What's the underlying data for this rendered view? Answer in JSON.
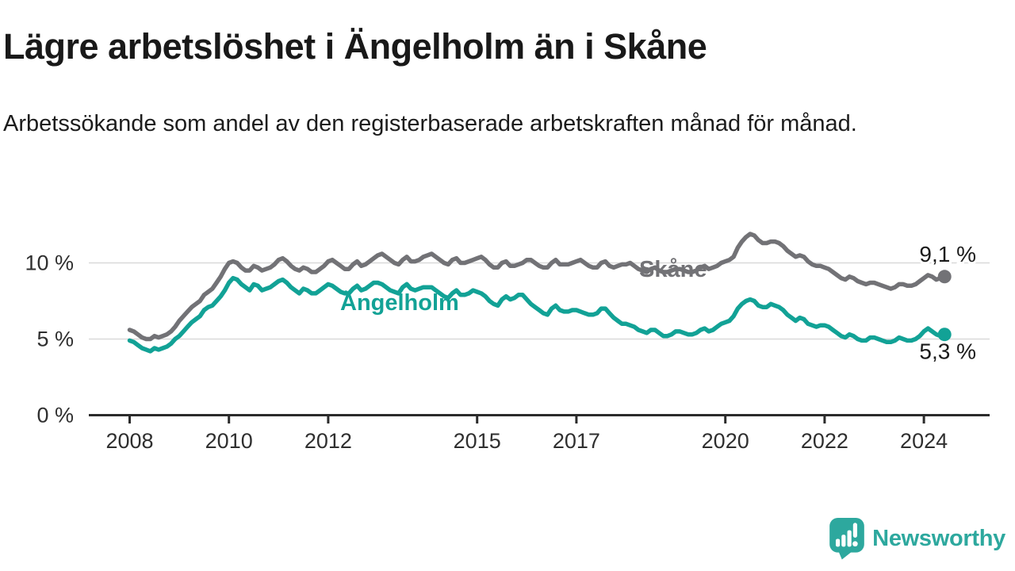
{
  "title": "Lägre arbetslöshet i Ängelholm än i Skåne",
  "subtitle": "Arbetssökande som andel av den registerbaserade arbetskraften månad för månad.",
  "branding": {
    "name": "Newsworthy",
    "icon": "newsworthy-chart-bubble-icon",
    "color": "#2da89e"
  },
  "colors": {
    "background": "#ffffff",
    "grid": "#d9d9d9",
    "axis": "#2b2b2b",
    "tick_label": "#2f2f2f",
    "value_label": "#1a1a1a",
    "skane": "#727276",
    "angelholm": "#12a296"
  },
  "chart_data": {
    "type": "line",
    "unit": "%",
    "frequency": "monthly",
    "start_year": 2008,
    "end_label_note": "last point mid-2024",
    "x_ticks": [
      {
        "year": 2008,
        "label": "2008"
      },
      {
        "year": 2010,
        "label": "2010"
      },
      {
        "year": 2012,
        "label": "2012"
      },
      {
        "year": 2015,
        "label": "2015"
      },
      {
        "year": 2017,
        "label": "2017"
      },
      {
        "year": 2020,
        "label": "2020"
      },
      {
        "year": 2022,
        "label": "2022"
      },
      {
        "year": 2024,
        "label": "2024"
      }
    ],
    "y_ticks": [
      {
        "value": 0,
        "label": "0 %"
      },
      {
        "value": 5,
        "label": "5 %"
      },
      {
        "value": 10,
        "label": "10 %"
      }
    ],
    "grid_values": [
      5,
      10
    ],
    "ylim": [
      0,
      12.5
    ],
    "legend_position": "inline-labels",
    "series": [
      {
        "id": "skane",
        "name": "Skåne",
        "color": "#727276",
        "end_label": "9,1 %",
        "value_label_side": "above",
        "name_label": {
          "x": 806,
          "y": 349
        },
        "values": [
          5.6,
          5.5,
          5.3,
          5.1,
          5.0,
          5.0,
          5.2,
          5.1,
          5.2,
          5.3,
          5.5,
          5.8,
          6.2,
          6.5,
          6.8,
          7.1,
          7.3,
          7.5,
          7.9,
          8.1,
          8.3,
          8.7,
          9.1,
          9.6,
          10.0,
          10.1,
          10.0,
          9.7,
          9.5,
          9.5,
          9.8,
          9.7,
          9.5,
          9.6,
          9.7,
          9.9,
          10.2,
          10.3,
          10.1,
          9.8,
          9.6,
          9.5,
          9.7,
          9.6,
          9.4,
          9.4,
          9.6,
          9.8,
          10.1,
          10.2,
          10.0,
          9.8,
          9.6,
          9.6,
          9.9,
          10.1,
          9.8,
          9.9,
          10.1,
          10.3,
          10.5,
          10.6,
          10.4,
          10.2,
          10.0,
          9.9,
          10.2,
          10.4,
          10.1,
          10.1,
          10.2,
          10.4,
          10.5,
          10.6,
          10.4,
          10.2,
          10.0,
          9.9,
          10.2,
          10.3,
          10.0,
          10.0,
          10.1,
          10.2,
          10.3,
          10.4,
          10.2,
          9.9,
          9.7,
          9.7,
          10.0,
          10.1,
          9.8,
          9.8,
          9.9,
          10.0,
          10.2,
          10.2,
          10.0,
          9.8,
          9.7,
          9.7,
          10.0,
          10.2,
          9.9,
          9.9,
          9.9,
          10.0,
          10.1,
          10.2,
          10.0,
          9.8,
          9.7,
          9.7,
          10.0,
          10.1,
          9.8,
          9.7,
          9.8,
          9.9,
          9.9,
          10.0,
          9.8,
          9.6,
          9.5,
          9.4,
          9.6,
          9.7,
          9.5,
          9.4,
          9.4,
          9.5,
          9.6,
          9.6,
          9.5,
          9.4,
          9.4,
          9.5,
          9.7,
          9.8,
          9.6,
          9.7,
          9.8,
          10.0,
          10.1,
          10.2,
          10.4,
          11.0,
          11.4,
          11.7,
          11.9,
          11.8,
          11.5,
          11.3,
          11.3,
          11.4,
          11.4,
          11.3,
          11.1,
          10.8,
          10.6,
          10.4,
          10.5,
          10.4,
          10.1,
          9.9,
          9.8,
          9.8,
          9.7,
          9.6,
          9.4,
          9.2,
          9.0,
          8.9,
          9.1,
          9.0,
          8.8,
          8.7,
          8.6,
          8.7,
          8.7,
          8.6,
          8.5,
          8.4,
          8.3,
          8.4,
          8.6,
          8.6,
          8.5,
          8.5,
          8.6,
          8.8,
          9.0,
          9.2,
          9.1,
          8.9,
          9.0,
          9.1
        ]
      },
      {
        "id": "angelholm",
        "name": "Ängelholm",
        "color": "#12a296",
        "end_label": "5,3 %",
        "value_label_side": "below",
        "name_label": {
          "x": 429,
          "y": 391
        },
        "values": [
          4.9,
          4.8,
          4.6,
          4.4,
          4.3,
          4.2,
          4.4,
          4.3,
          4.4,
          4.5,
          4.7,
          5.0,
          5.2,
          5.5,
          5.8,
          6.1,
          6.3,
          6.5,
          6.9,
          7.1,
          7.2,
          7.5,
          7.8,
          8.2,
          8.7,
          9.0,
          8.9,
          8.6,
          8.4,
          8.2,
          8.6,
          8.5,
          8.2,
          8.3,
          8.4,
          8.6,
          8.8,
          8.9,
          8.7,
          8.4,
          8.2,
          8.0,
          8.3,
          8.2,
          8.0,
          8.0,
          8.2,
          8.4,
          8.6,
          8.5,
          8.3,
          8.1,
          8.0,
          8.0,
          8.3,
          8.5,
          8.2,
          8.3,
          8.5,
          8.7,
          8.7,
          8.6,
          8.4,
          8.2,
          8.1,
          8.0,
          8.4,
          8.6,
          8.3,
          8.2,
          8.3,
          8.4,
          8.4,
          8.4,
          8.2,
          8.0,
          7.8,
          7.7,
          8.0,
          8.2,
          7.9,
          7.9,
          8.0,
          8.2,
          8.1,
          8.0,
          7.8,
          7.5,
          7.3,
          7.2,
          7.6,
          7.8,
          7.6,
          7.7,
          7.9,
          7.9,
          7.6,
          7.3,
          7.1,
          6.9,
          6.7,
          6.6,
          7.0,
          7.2,
          6.9,
          6.8,
          6.8,
          6.9,
          6.9,
          6.8,
          6.7,
          6.6,
          6.6,
          6.7,
          7.0,
          7.0,
          6.7,
          6.4,
          6.2,
          6.0,
          6.0,
          5.9,
          5.8,
          5.6,
          5.5,
          5.4,
          5.6,
          5.6,
          5.4,
          5.2,
          5.2,
          5.3,
          5.5,
          5.5,
          5.4,
          5.3,
          5.3,
          5.4,
          5.6,
          5.7,
          5.5,
          5.6,
          5.8,
          6.0,
          6.1,
          6.2,
          6.5,
          7.0,
          7.3,
          7.5,
          7.6,
          7.5,
          7.2,
          7.1,
          7.1,
          7.3,
          7.2,
          7.1,
          6.9,
          6.6,
          6.4,
          6.2,
          6.4,
          6.3,
          6.0,
          5.9,
          5.8,
          5.9,
          5.9,
          5.8,
          5.6,
          5.4,
          5.2,
          5.1,
          5.3,
          5.2,
          5.0,
          4.9,
          4.9,
          5.1,
          5.1,
          5.0,
          4.9,
          4.8,
          4.8,
          4.9,
          5.1,
          5.0,
          4.9,
          4.9,
          5.0,
          5.2,
          5.5,
          5.7,
          5.5,
          5.3,
          5.2,
          5.3
        ]
      }
    ]
  }
}
